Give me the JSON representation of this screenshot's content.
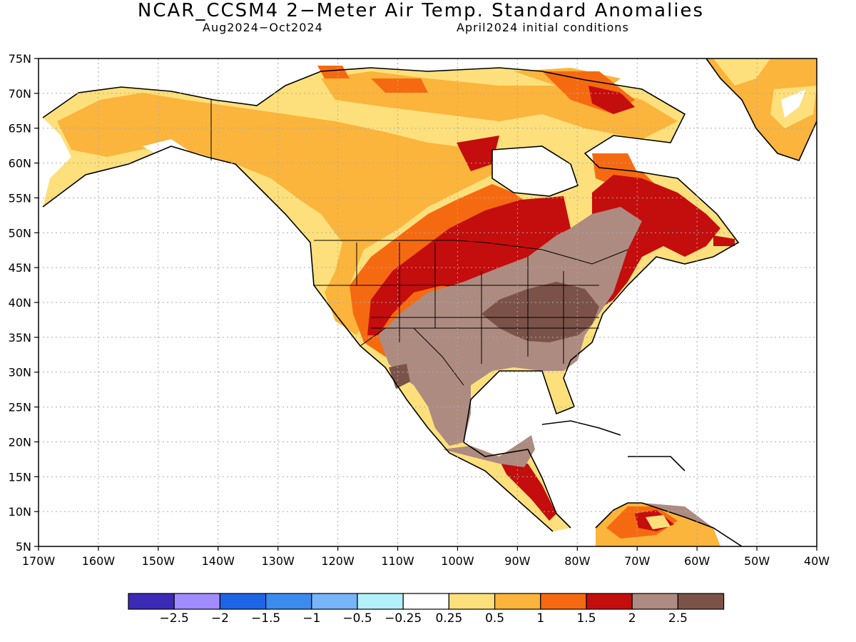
{
  "header": {
    "title": "NCAR_CCSM4 2−Meter Air Temp. Standard Anomalies",
    "period": "Aug2024−Oct2024",
    "init": "April2024 initial conditions"
  },
  "map": {
    "lat_labels": [
      "75N",
      "70N",
      "65N",
      "60N",
      "55N",
      "50N",
      "45N",
      "40N",
      "35N",
      "30N",
      "25N",
      "20N",
      "15N",
      "10N",
      "5N"
    ],
    "lon_labels": [
      "170W",
      "160W",
      "150W",
      "140W",
      "130W",
      "120W",
      "110W",
      "100W",
      "90W",
      "80W",
      "70W",
      "60W",
      "50W",
      "40W"
    ],
    "colors": {
      "ocean": "#ffffff",
      "weak_warm": "#fde07c",
      "moderate_warm": "#fbb43c",
      "warm": "#f56a10",
      "strong_warm": "#c40d0d",
      "very_strong_warm": "#ad8b80",
      "extreme_warm": "#7b5248",
      "coast": "#000000",
      "grid": "#aaaaaa"
    }
  },
  "colorbar": {
    "labels": [
      "−2.5",
      "−2",
      "−1.5",
      "−1",
      "−0.5",
      "−0.25",
      "0.25",
      "0.5",
      "1",
      "1.5",
      "2",
      "2.5"
    ],
    "colors": [
      "#3b2ab6",
      "#a08cff",
      "#1e64e6",
      "#3c8cf0",
      "#78b4f8",
      "#b4f0fa",
      "#ffffff",
      "#fde07c",
      "#fbb43c",
      "#f56a10",
      "#c40d0d",
      "#ad8b80",
      "#7b5248"
    ]
  }
}
